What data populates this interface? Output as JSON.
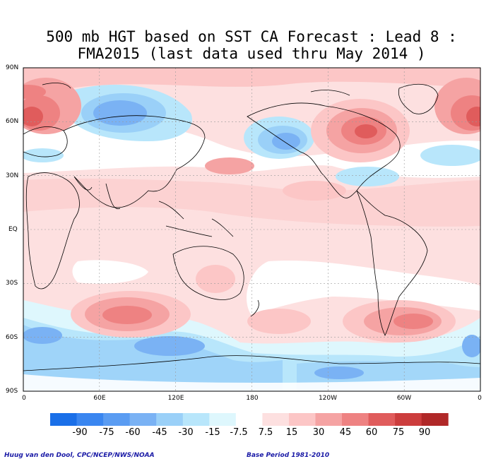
{
  "title_line1": "500 mb HGT based on SST CA Forecast : Lead 8 :",
  "title_line2": "FMA2015 (last data used thru May 2014 )",
  "lat_labels": [
    "90N",
    "60N",
    "30N",
    "EQ",
    "30S",
    "60S",
    "90S"
  ],
  "lon_labels": [
    "0",
    "60E",
    "120E",
    "180",
    "120W",
    "60W",
    "0"
  ],
  "colorbar": {
    "labels": [
      "-90",
      "-75",
      "-60",
      "-45",
      "-30",
      "-15",
      "-7.5",
      "7.5",
      "15",
      "30",
      "45",
      "60",
      "75",
      "90"
    ],
    "colors": [
      "#1a6fe8",
      "#3a86f0",
      "#5a9cf2",
      "#7ab2f4",
      "#9ad0f8",
      "#b8e6fb",
      "#def7fd",
      "#ffffff",
      "#fde0e0",
      "#fcc6c6",
      "#f5a3a3",
      "#ee8282",
      "#e05c5c",
      "#cc3d3d",
      "#b02828"
    ]
  },
  "credit_left": "Huug van den Dool, CPC/NCEP/NWS/NOAA",
  "credit_right": "Base Period 1981-2010"
}
